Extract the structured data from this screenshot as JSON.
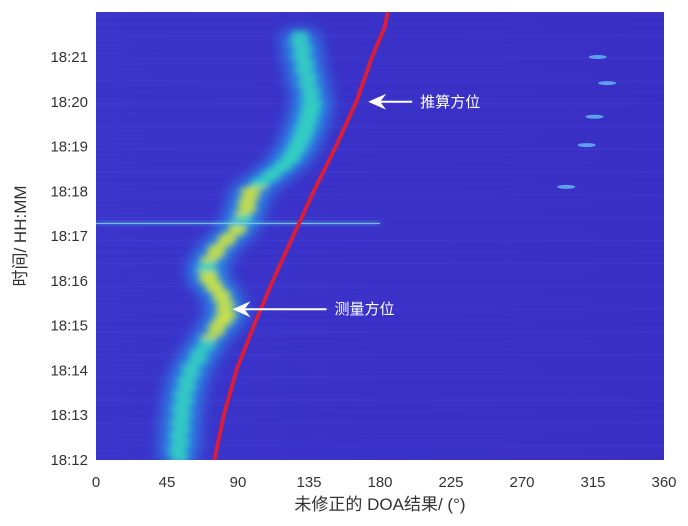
{
  "chart_data": {
    "type": "heatmap",
    "title": "",
    "xlabel": "未修正的 DOA结果/ (°)",
    "ylabel": "时间/ HH:MM",
    "xlim": [
      0,
      360
    ],
    "x_ticks": [
      "0",
      "45",
      "90",
      "135",
      "180",
      "225",
      "270",
      "315",
      "360"
    ],
    "y_ticks": [
      "18:12",
      "18:13",
      "18:14",
      "18:15",
      "18:16",
      "18:17",
      "18:18",
      "18:19",
      "18:20",
      "18:21"
    ],
    "background_color": "#3a32c8",
    "grid": false,
    "series": [
      {
        "name": "测量方位",
        "style": "intensity-track",
        "points": [
          {
            "x": 52,
            "t": "18:12"
          },
          {
            "x": 53,
            "t": "18:12:30"
          },
          {
            "x": 54,
            "t": "18:13"
          },
          {
            "x": 56,
            "t": "18:13:30"
          },
          {
            "x": 60,
            "t": "18:14"
          },
          {
            "x": 68,
            "t": "18:14:30"
          },
          {
            "x": 78,
            "t": "18:15"
          },
          {
            "x": 83,
            "t": "18:15:15"
          },
          {
            "x": 80,
            "t": "18:15:40"
          },
          {
            "x": 72,
            "t": "18:16"
          },
          {
            "x": 70,
            "t": "18:16:20"
          },
          {
            "x": 78,
            "t": "18:16:45"
          },
          {
            "x": 90,
            "t": "18:17:10"
          },
          {
            "x": 95,
            "t": "18:17:35"
          },
          {
            "x": 98,
            "t": "18:18"
          },
          {
            "x": 110,
            "t": "18:18:20"
          },
          {
            "x": 122,
            "t": "18:18:40"
          },
          {
            "x": 128,
            "t": "18:19"
          },
          {
            "x": 132,
            "t": "18:19:20"
          },
          {
            "x": 135,
            "t": "18:19:40"
          },
          {
            "x": 137,
            "t": "18:20"
          },
          {
            "x": 134,
            "t": "18:20:30"
          },
          {
            "x": 131,
            "t": "18:21"
          },
          {
            "x": 129,
            "t": "18:21:30"
          }
        ]
      },
      {
        "name": "推算方位",
        "style": "red-line",
        "color": "#d81e3a",
        "points": [
          {
            "x": 75,
            "t": "18:12"
          },
          {
            "x": 81,
            "t": "18:13"
          },
          {
            "x": 89,
            "t": "18:14"
          },
          {
            "x": 100,
            "t": "18:15"
          },
          {
            "x": 112,
            "t": "18:16"
          },
          {
            "x": 125,
            "t": "18:17"
          },
          {
            "x": 138,
            "t": "18:18"
          },
          {
            "x": 152,
            "t": "18:19"
          },
          {
            "x": 165,
            "t": "18:20"
          },
          {
            "x": 175,
            "t": "18:21"
          },
          {
            "x": 183,
            "t": "18:21:40"
          }
        ]
      },
      {
        "name": "",
        "style": "dashes",
        "points": [
          {
            "x": 318,
            "t": "18:21"
          },
          {
            "x": 324,
            "t": "18:20:25"
          },
          {
            "x": 316,
            "t": "18:19:40"
          },
          {
            "x": 311,
            "t": "18:19:02"
          },
          {
            "x": 298,
            "t": "18:18:06"
          }
        ]
      }
    ],
    "annotations": [
      {
        "text": "推算方位",
        "target_x": 170,
        "target_t": "18:20"
      },
      {
        "text": "测量方位",
        "target_x": 84,
        "target_t": "18:15:22"
      }
    ],
    "horizontal_streak": {
      "t": "18:17:17",
      "x_range": [
        0,
        180
      ]
    }
  }
}
